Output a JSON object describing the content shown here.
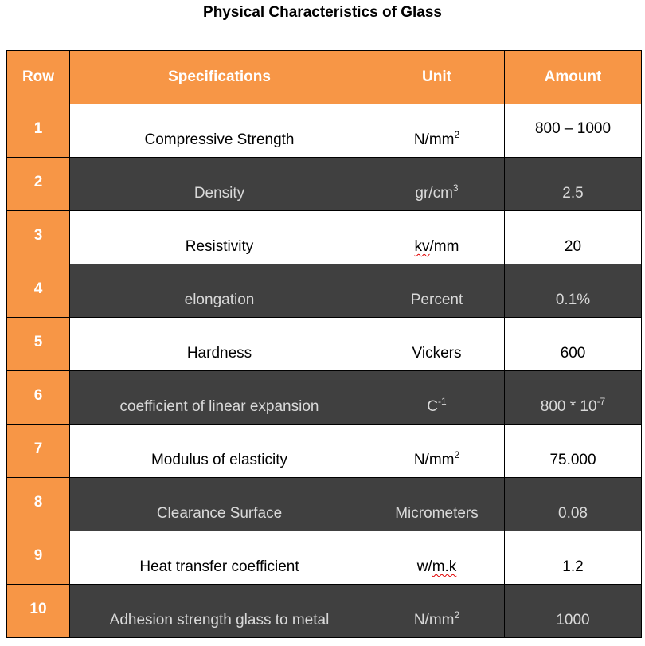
{
  "title": "Physical Characteristics of Glass",
  "headers": [
    "Row",
    "Specifications",
    "Unit",
    "Amount"
  ],
  "colors": {
    "header": "#F79646",
    "dark_row": "#404040",
    "light_row": "#FFFFFF"
  },
  "rows": [
    {
      "row": "1",
      "spec": "Compressive Strength",
      "unit": "N/mm",
      "unit_sup": "2",
      "amount": "800 – 1000",
      "amount_sup": ""
    },
    {
      "row": "2",
      "spec": "Density",
      "unit": "gr/cm",
      "unit_sup": "3",
      "amount": "2.5",
      "amount_sup": ""
    },
    {
      "row": "3",
      "spec": "Resistivity",
      "unit": "kv/mm",
      "unit_sup": "",
      "amount": "20",
      "amount_sup": ""
    },
    {
      "row": "4",
      "spec": "elongation",
      "unit": "Percent",
      "unit_sup": "",
      "amount": "0.1%",
      "amount_sup": ""
    },
    {
      "row": "5",
      "spec": "Hardness",
      "unit": "Vickers",
      "unit_sup": "",
      "amount": "600",
      "amount_sup": ""
    },
    {
      "row": "6",
      "spec": "coefficient of linear expansion",
      "unit": "C",
      "unit_sup": "-1",
      "amount": "800 * 10",
      "amount_sup": "-7"
    },
    {
      "row": "7",
      "spec": "Modulus of elasticity",
      "unit": "N/mm",
      "unit_sup": "2",
      "amount": "75.000",
      "amount_sup": ""
    },
    {
      "row": "8",
      "spec": "Clearance Surface",
      "unit": "Micrometers",
      "unit_sup": "",
      "amount": "0.08",
      "amount_sup": ""
    },
    {
      "row": "9",
      "spec": "Heat transfer coefficient",
      "unit": "w/m.k",
      "unit_sup": "",
      "amount": "1.2",
      "amount_sup": ""
    },
    {
      "row": "10",
      "spec": "Adhesion strength glass to metal",
      "unit": "N/mm",
      "unit_sup": "2",
      "amount": "1000",
      "amount_sup": ""
    }
  ]
}
